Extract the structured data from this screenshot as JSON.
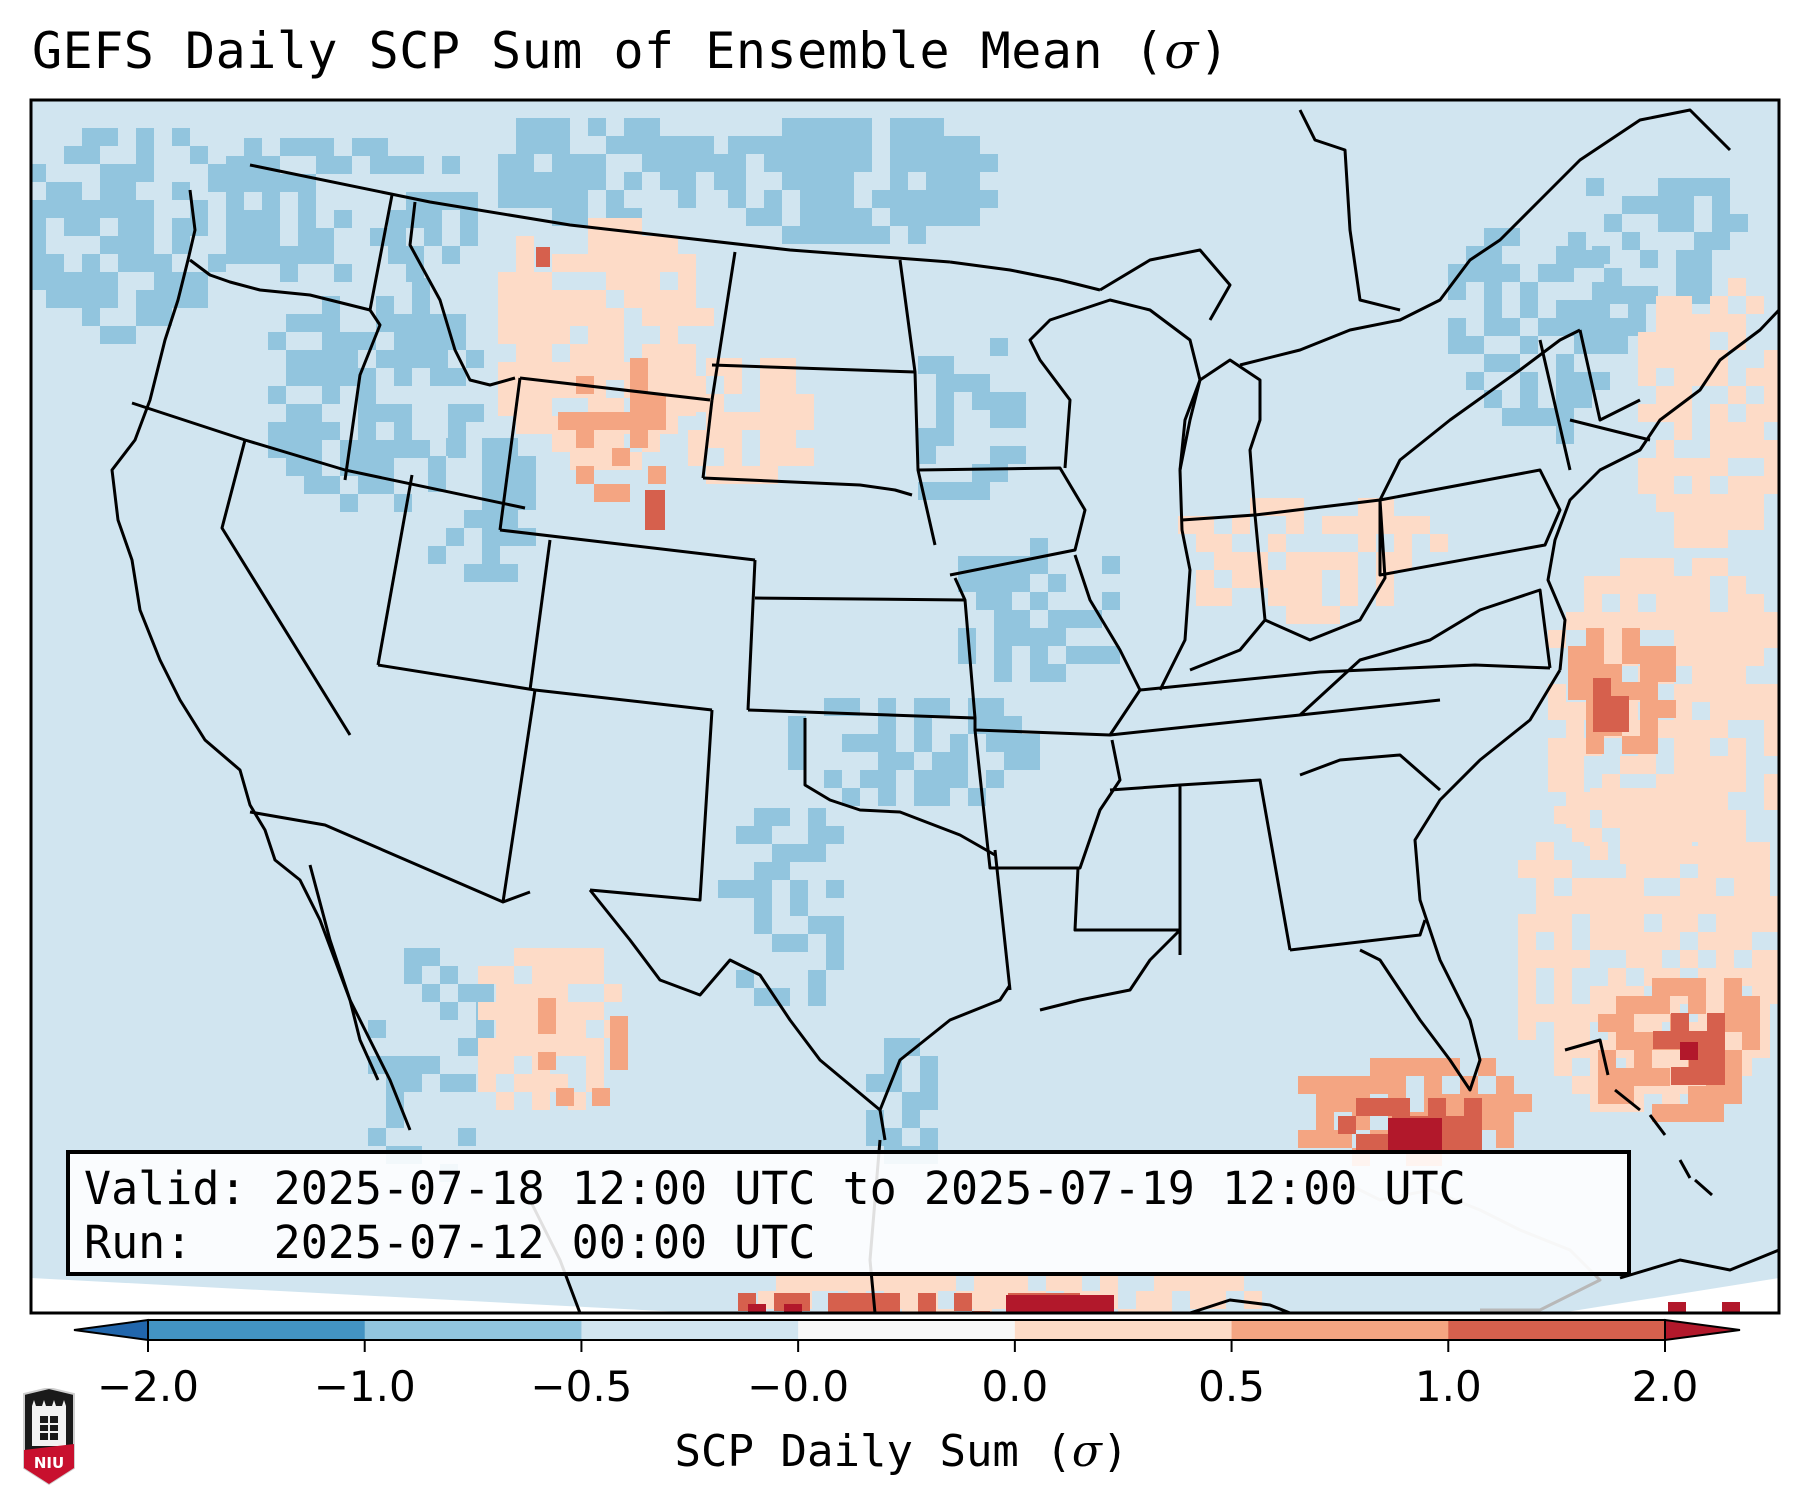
{
  "title": {
    "text": "GEFS Daily SCP Sum of Ensemble Mean (",
    "sigma": "σ",
    "close": ")"
  },
  "infobox": {
    "valid_line": "Valid: 2025-07-18 12:00 UTC to 2025-07-19 12:00 UTC",
    "run_line": "Run:   2025-07-12 00:00 UTC"
  },
  "colorbar": {
    "label_text": "SCP Daily Sum (",
    "label_sigma": "σ",
    "label_close": ")",
    "ticks": [
      "−2.0",
      "−1.0",
      "−0.5",
      "−0.0",
      "0.0",
      "0.5",
      "1.0",
      "2.0"
    ],
    "bins": [
      {
        "color": "#2166ac"
      },
      {
        "color": "#4393c3"
      },
      {
        "color": "#92c5de"
      },
      {
        "color": "#d1e5f0"
      },
      {
        "color": "#f7f7f7"
      },
      {
        "color": "#fddbc7"
      },
      {
        "color": "#f4a582"
      },
      {
        "color": "#d6604d"
      },
      {
        "color": "#b2182b"
      }
    ]
  },
  "map": {
    "colors": {
      "background": "#d1e5f0",
      "neg_light": "#92c5de",
      "pos_light": "#fddbc7",
      "pos_mid": "#f4a582",
      "pos_high": "#d6604d",
      "pos_max": "#b2182b",
      "outline": "#000000"
    }
  },
  "logo": {
    "text": "NIU"
  }
}
